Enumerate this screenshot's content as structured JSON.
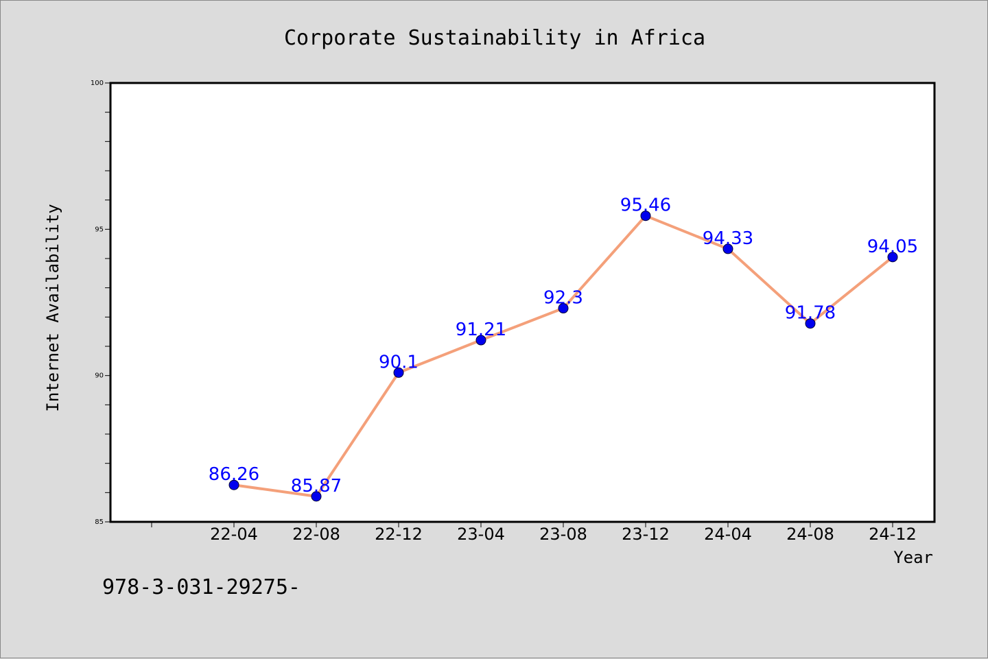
{
  "chart_data": {
    "type": "line",
    "title": "Corporate Sustainability in Africa",
    "xlabel": "Year",
    "ylabel": "Internet Availability",
    "categories": [
      "22-04",
      "22-08",
      "22-12",
      "23-04",
      "23-08",
      "23-12",
      "24-04",
      "24-08",
      "24-12"
    ],
    "series": [
      {
        "values": [
          86.26,
          85.87,
          90.1,
          91.21,
          92.3,
          95.46,
          94.33,
          91.78,
          94.05
        ],
        "labels": [
          "86.26",
          "85.87",
          "90.1",
          "91.21",
          "92.3",
          "95.46",
          "94.33",
          "91.78",
          "94.05"
        ]
      }
    ],
    "ylim": [
      85,
      100
    ],
    "yticks": [
      "85",
      "90",
      "95",
      "100"
    ],
    "grid": false,
    "legend": "none",
    "colors": {
      "line": "#f4a07a",
      "marker": "#0000ee",
      "label": "#0000ff",
      "background": "#dcdcdc",
      "plot_background": "#ffffff"
    }
  },
  "footer": {
    "text": "978-3-031-29275-"
  }
}
